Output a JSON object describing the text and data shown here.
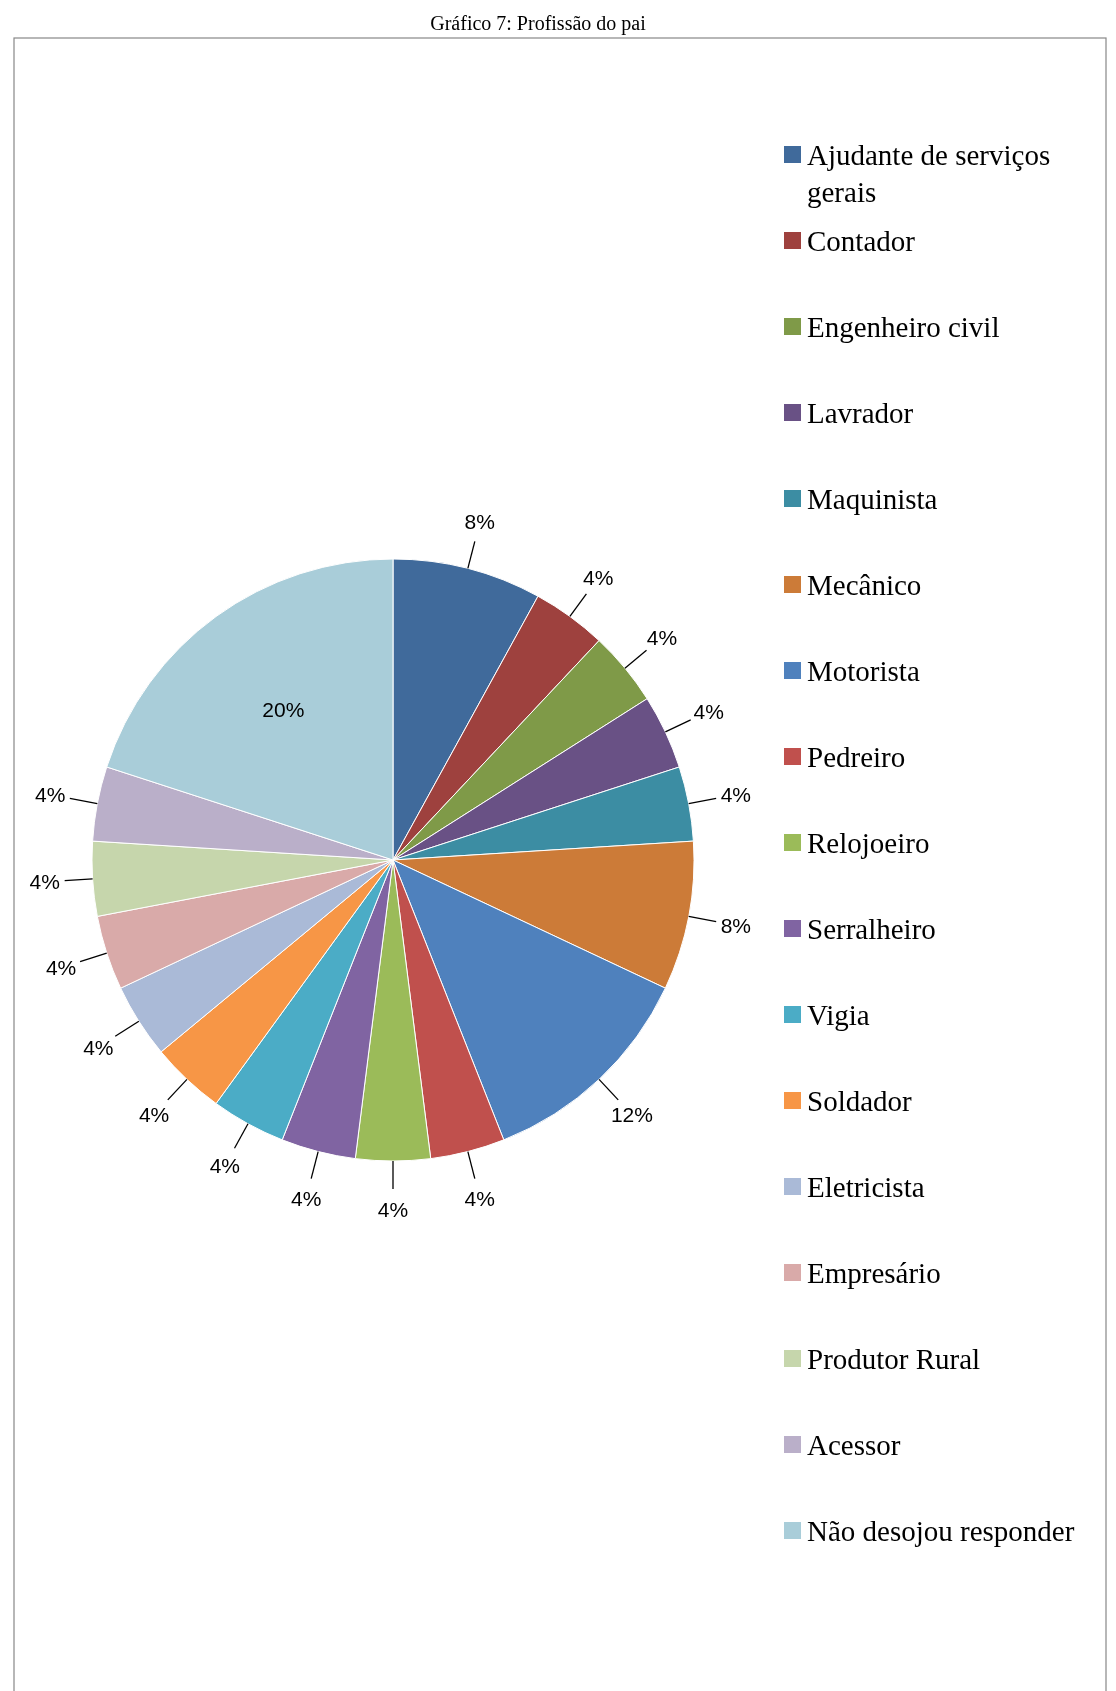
{
  "chart_data": {
    "type": "pie",
    "title": "Gráfico 7: Profissão do pai",
    "categories": [
      "Ajudante de serviços gerais",
      "Contador",
      "Engenheiro civil",
      "Lavrador",
      "Maquinista",
      "Mecânico",
      "Motorista",
      "Pedreiro",
      "Relojoeiro",
      "Serralheiro",
      "Vigia",
      "Soldador",
      "Eletricista",
      "Empresário",
      "Produtor Rural",
      "Acessor",
      "Não desojou responder"
    ],
    "values": [
      8,
      4,
      4,
      4,
      4,
      8,
      12,
      4,
      4,
      4,
      4,
      4,
      4,
      4,
      4,
      4,
      20
    ],
    "value_labels": [
      "8%",
      "4%",
      "4%",
      "4%",
      "4%",
      "8%",
      "12%",
      "4%",
      "4%",
      "4%",
      "4%",
      "4%",
      "4%",
      "4%",
      "4%",
      "4%",
      "20%"
    ],
    "colors": [
      "#406a9b",
      "#9e413e",
      "#7f9a48",
      "#695185",
      "#3c8da3",
      "#cc7b38",
      "#4f81bd",
      "#c0504d",
      "#9bbb59",
      "#8064a2",
      "#4bacc6",
      "#f79646",
      "#aabad7",
      "#d9aaa9",
      "#c6d6ac",
      "#baafc9",
      "#a9cdd9"
    ],
    "legend": "right"
  }
}
